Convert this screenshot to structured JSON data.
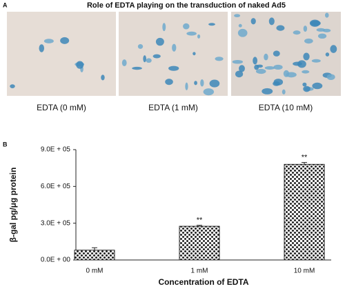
{
  "panel_a": {
    "label": "A",
    "title": "Role of EDTA playing on the transduction of naked Ad5",
    "captions": [
      "EDTA (0 mM)",
      "EDTA (1 mM)",
      "EDTA (10 mM)"
    ]
  },
  "chart_data": {
    "type": "bar",
    "panel_label": "B",
    "x_label": "Concentration of EDTA",
    "y_label": "β-gal pg/μg protein",
    "categories": [
      "0 mM",
      "1 mM",
      "10 mM"
    ],
    "values": [
      80000,
      275000,
      780000
    ],
    "errors": [
      20000,
      8000,
      15000
    ],
    "annotations": [
      null,
      "**",
      "**"
    ],
    "color": "#222222",
    "ylim": [
      0,
      900000
    ],
    "yticks": [
      {
        "value": 0,
        "label": "0.0E + 00"
      },
      {
        "value": 300000,
        "label": "3.0E + 05"
      },
      {
        "value": 600000,
        "label": "6.0E + 05"
      },
      {
        "value": 900000,
        "label": "9.0E + 05"
      }
    ]
  }
}
